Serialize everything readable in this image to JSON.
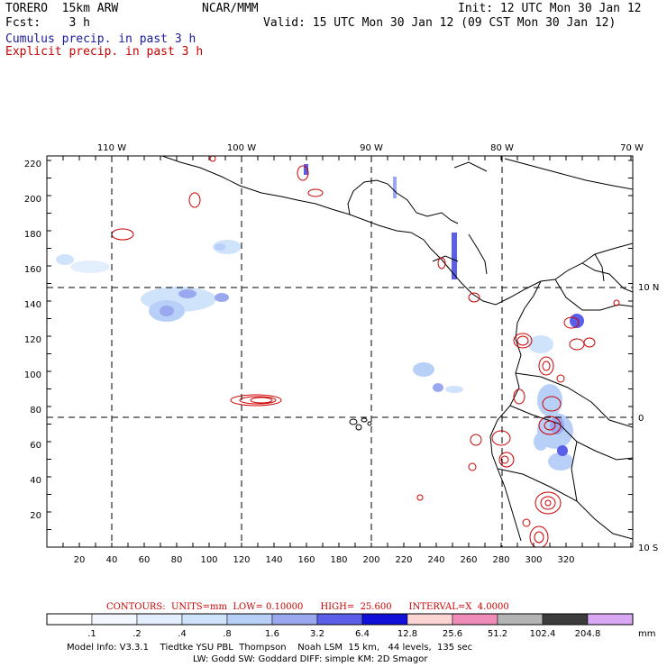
{
  "header": {
    "model": "TORERO  15km ARW",
    "org": "NCAR/MMM",
    "init": "Init: 12 UTC Mon 30 Jan 12",
    "fcst": "Fcst:    3 h",
    "valid": "Valid: 15 UTC Mon 30 Jan 12 (09 CST Mon 30 Jan 12)",
    "field1": "Cumulus precip. in past 3 h",
    "field2": "Explicit precip. in past 3 h"
  },
  "colors": {
    "field1": "#1a1a9c",
    "field2": "#cc0000"
  },
  "map": {
    "lon_labels": [
      "110 W",
      "100 W",
      "90 W",
      "80 W",
      "70 W"
    ],
    "lat_labels": [
      "10 N",
      "0",
      "10 S"
    ],
    "x_ticks": [
      "20",
      "40",
      "60",
      "80",
      "100",
      "120",
      "140",
      "160",
      "180",
      "200",
      "220",
      "240",
      "260",
      "280",
      "300",
      "320"
    ],
    "y_ticks": [
      "220",
      "200",
      "180",
      "160",
      "140",
      "120",
      "100",
      "80",
      "60",
      "40",
      "20"
    ]
  },
  "contours": {
    "line": "CONTOURS:  UNITS=mm  LOW= 0.10000      HIGH=  25.600      INTERVAL=X  4.0000"
  },
  "colorbar": {
    "labels": [
      ".1",
      ".2",
      ".4",
      ".8",
      "1.6",
      "3.2",
      "6.4",
      "12.8",
      "25.6",
      "51.2",
      "102.4",
      "204.8"
    ],
    "unit": "mm",
    "colors": [
      "#ffffff",
      "#f3f7ff",
      "#e3eeff",
      "#cfe3fb",
      "#b8d0f7",
      "#9aa8f0",
      "#5a5ee8",
      "#1010d8",
      "#fcd4d4",
      "#f08cb8",
      "#b4b4b4",
      "#3c3c3c",
      "#d8a8f4"
    ]
  },
  "footer": {
    "line1": "Model Info: V3.3.1    Tiedtke YSU PBL  Thompson    Noah LSM  15 km,   44 levels,  135 sec",
    "line2": "LW: Godd SW: Goddard DIFF: simple KM: 2D Smagor"
  }
}
